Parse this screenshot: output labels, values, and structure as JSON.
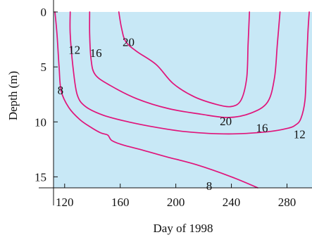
{
  "chart_data": {
    "type": "contour",
    "xlabel": "Day of 1998",
    "ylabel": "Depth (m)",
    "xlim": [
      112,
      298
    ],
    "ylim": [
      0,
      16
    ],
    "y_inverted": true,
    "x_ticks": [
      120,
      160,
      200,
      240,
      280
    ],
    "y_ticks": [
      0,
      5,
      10,
      15
    ],
    "grid": false,
    "colors": {
      "plot_background": "#c8e8f6",
      "contour_line": "#e0147a",
      "axis": "#111111"
    },
    "series": [
      {
        "name": "8",
        "points": [
          [
            113,
            0
          ],
          [
            114.5,
            2
          ],
          [
            116,
            5
          ],
          [
            117.5,
            7.2
          ],
          [
            123,
            8.7
          ],
          [
            131,
            9.8
          ],
          [
            139,
            10.5
          ],
          [
            146,
            11
          ],
          [
            151,
            11.2
          ],
          [
            154,
            11.7
          ],
          [
            162,
            12.1
          ],
          [
            177,
            12.6
          ],
          [
            194,
            13.2
          ],
          [
            215,
            13.9
          ],
          [
            240,
            15
          ],
          [
            259,
            16
          ]
        ]
      },
      {
        "name": "12",
        "points": [
          [
            124,
            0
          ],
          [
            124,
            2
          ],
          [
            126,
            5
          ],
          [
            129,
            7.5
          ],
          [
            135,
            8.6
          ],
          [
            148,
            9.4
          ],
          [
            166,
            10
          ],
          [
            186,
            10.5
          ],
          [
            208,
            10.9
          ],
          [
            238,
            11.1
          ],
          [
            266,
            10.9
          ],
          [
            280,
            10.6
          ],
          [
            286,
            10.3
          ],
          [
            290,
            9.7
          ],
          [
            293,
            8
          ],
          [
            294,
            5
          ],
          [
            295,
            2
          ],
          [
            296,
            0
          ]
        ]
      },
      {
        "name": "16",
        "points": [
          [
            138,
            0
          ],
          [
            138,
            2
          ],
          [
            139,
            4.3
          ],
          [
            142,
            5.7
          ],
          [
            153,
            6.7
          ],
          [
            172,
            7.9
          ],
          [
            195,
            8.8
          ],
          [
            218,
            9.3
          ],
          [
            238,
            9.6
          ],
          [
            254,
            9.2
          ],
          [
            266,
            8.2
          ],
          [
            271,
            6
          ],
          [
            273,
            3
          ],
          [
            275,
            0
          ]
        ]
      },
      {
        "name": "20",
        "points": [
          [
            159,
            0
          ],
          [
            161,
            1.5
          ],
          [
            164,
            2.7
          ],
          [
            172,
            3.6
          ],
          [
            186,
            4.8
          ],
          [
            198,
            6.5
          ],
          [
            213,
            7.7
          ],
          [
            229,
            8.4
          ],
          [
            240,
            8.6
          ],
          [
            247,
            8
          ],
          [
            251,
            6
          ],
          [
            252,
            3
          ],
          [
            253,
            0
          ]
        ]
      }
    ],
    "contour_labels": [
      {
        "text": "8",
        "x": 117,
        "y": 7.5
      },
      {
        "text": "12",
        "x": 127,
        "y": 3.8
      },
      {
        "text": "16",
        "x": 142.5,
        "y": 4.1
      },
      {
        "text": "20",
        "x": 166,
        "y": 3.1
      },
      {
        "text": "20",
        "x": 236,
        "y": 10.3
      },
      {
        "text": "16",
        "x": 262,
        "y": 10.9
      },
      {
        "text": "12",
        "x": 289,
        "y": 11.5
      },
      {
        "text": "8",
        "x": 224,
        "y": 16.2
      }
    ]
  }
}
